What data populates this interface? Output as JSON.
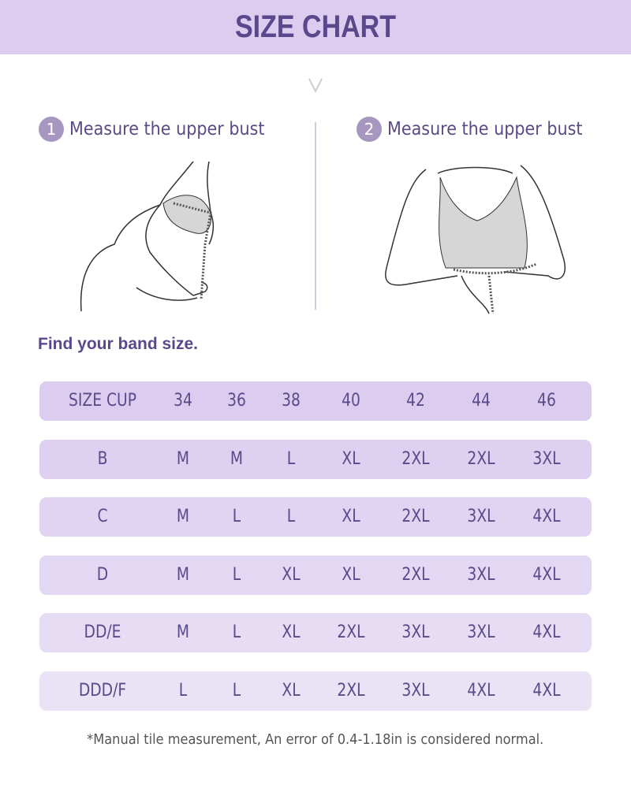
{
  "title": "SIZE CHART",
  "icons": {
    "scroll_hint": "chevron-down-icon"
  },
  "steps": [
    {
      "number": "1",
      "label": "Measure the upper bust"
    },
    {
      "number": "2",
      "label": "Measure the upper bust"
    }
  ],
  "band_heading": "Find your band size.",
  "table": {
    "header": [
      "SIZE CUP",
      "34",
      "36",
      "38",
      "40",
      "42",
      "44",
      "46"
    ],
    "rows": [
      [
        "B",
        "M",
        "M",
        "L",
        "XL",
        "2XL",
        "2XL",
        "3XL"
      ],
      [
        "C",
        "M",
        "L",
        "L",
        "XL",
        "2XL",
        "3XL",
        "4XL"
      ],
      [
        "D",
        "M",
        "L",
        "XL",
        "XL",
        "2XL",
        "3XL",
        "4XL"
      ],
      [
        "DD/E",
        "M",
        "L",
        "XL",
        "2XL",
        "3XL",
        "3XL",
        "4XL"
      ],
      [
        "DDD/F",
        "L",
        "L",
        "XL",
        "2XL",
        "3XL",
        "4XL",
        "4XL"
      ]
    ]
  },
  "note": "*Manual tile measurement, An error of 0.4-1.18in is considered normal.",
  "colors": {
    "accent": "#5b478c",
    "header_bg": "#dccdf0",
    "row_top": "#dccdf0",
    "row_bottom": "#ebe4f6",
    "badge": "#a696c0"
  }
}
